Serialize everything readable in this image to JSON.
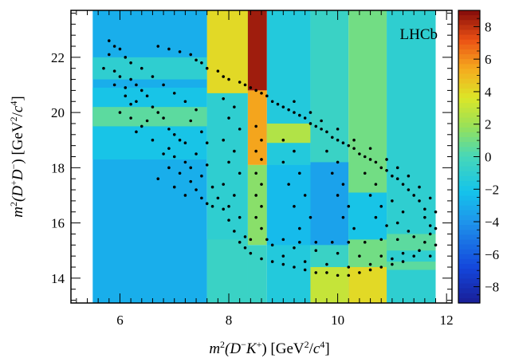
{
  "chart_data": {
    "type": "heatmap",
    "title": "",
    "annotation": "LHCb",
    "xlabel": {
      "text": "m",
      "sup1": "2",
      "mid": "(D",
      "sup2": "−",
      "mid2": "K",
      "sup3": "+",
      "mid3": ") [GeV",
      "sup4": "2",
      "mid4": "/c",
      "sup5": "4",
      "end": "]"
    },
    "ylabel": {
      "text": "m",
      "sup1": "2",
      "mid": "(D",
      "sup2": "+",
      "mid2": "D",
      "sup3": "−",
      "mid3": ") [GeV",
      "sup4": "2",
      "mid4": "/c",
      "sup5": "4",
      "end": "]"
    },
    "xlim": [
      5.1,
      12.1
    ],
    "ylim": [
      13.1,
      23.7
    ],
    "xticks": [
      6,
      8,
      10,
      12
    ],
    "yticks": [
      14,
      16,
      18,
      20,
      22
    ],
    "colorbar": {
      "range": [
        -9,
        9
      ],
      "ticks": [
        8,
        6,
        4,
        2,
        0,
        -2,
        -4,
        -6,
        -8
      ],
      "tick_labels": [
        "8",
        "6",
        "4",
        "2",
        "0",
        "−2",
        "−4",
        "−6",
        "−8"
      ]
    },
    "heatmap_cells": [
      {
        "x": [
          5.5,
          7.6
        ],
        "y": [
          13.1,
          23.7
        ],
        "v": -3.0
      },
      {
        "x": [
          5.5,
          7.6
        ],
        "y": [
          18.3,
          20.9
        ],
        "v": -2.0
      },
      {
        "x": [
          5.5,
          7.6
        ],
        "y": [
          19.5,
          20.2
        ],
        "v": 0.5
      },
      {
        "x": [
          5.5,
          7.6
        ],
        "y": [
          21.2,
          22.0
        ],
        "v": -1.0
      },
      {
        "x": [
          7.6,
          8.35
        ],
        "y": [
          13.1,
          23.7
        ],
        "v": -1.0
      },
      {
        "x": [
          7.6,
          8.35
        ],
        "y": [
          20.7,
          23.7
        ],
        "v": 4.0
      },
      {
        "x": [
          7.6,
          8.35
        ],
        "y": [
          13.1,
          15.4
        ],
        "v": -0.5
      },
      {
        "x": [
          8.35,
          8.7
        ],
        "y": [
          20.8,
          23.7
        ],
        "v": 8.5
      },
      {
        "x": [
          8.35,
          8.7
        ],
        "y": [
          18.1,
          20.8
        ],
        "v": 5.5
      },
      {
        "x": [
          8.35,
          8.7
        ],
        "y": [
          15.2,
          18.1
        ],
        "v": 1.5
      },
      {
        "x": [
          8.35,
          8.7
        ],
        "y": [
          13.1,
          15.2
        ],
        "v": -0.5
      },
      {
        "x": [
          8.7,
          9.5
        ],
        "y": [
          13.1,
          23.7
        ],
        "v": -1.5
      },
      {
        "x": [
          8.7,
          9.5
        ],
        "y": [
          18.9,
          19.6
        ],
        "v": 2.5
      },
      {
        "x": [
          8.7,
          9.5
        ],
        "y": [
          15.2,
          18.1
        ],
        "v": -2.5
      },
      {
        "x": [
          9.5,
          10.2
        ],
        "y": [
          13.1,
          23.7
        ],
        "v": -0.5
      },
      {
        "x": [
          9.5,
          10.2
        ],
        "y": [
          15.2,
          18.2
        ],
        "v": -3.5
      },
      {
        "x": [
          9.5,
          10.2
        ],
        "y": [
          13.1,
          14.4
        ],
        "v": 3.0
      },
      {
        "x": [
          10.2,
          10.9
        ],
        "y": [
          13.1,
          23.7
        ],
        "v": 1.0
      },
      {
        "x": [
          10.2,
          10.9
        ],
        "y": [
          15.4,
          17.1
        ],
        "v": -2.0
      },
      {
        "x": [
          10.2,
          10.9
        ],
        "y": [
          13.1,
          14.4
        ],
        "v": 4.0
      },
      {
        "x": [
          10.9,
          11.8
        ],
        "y": [
          13.1,
          23.7
        ],
        "v": -1.0
      },
      {
        "x": [
          10.9,
          11.8
        ],
        "y": [
          15.0,
          15.6
        ],
        "v": 0.5
      },
      {
        "x": [
          10.9,
          11.8
        ],
        "y": [
          14.3,
          14.6
        ],
        "v": 0.5
      }
    ],
    "scatter_description_source": "events",
    "scatter_points": [
      [
        5.8,
        22.6
      ],
      [
        5.9,
        22.4
      ],
      [
        6.0,
        22.3
      ],
      [
        5.8,
        22.1
      ],
      [
        6.1,
        22.0
      ],
      [
        6.2,
        21.8
      ],
      [
        5.7,
        21.6
      ],
      [
        5.9,
        21.5
      ],
      [
        6.0,
        21.3
      ],
      [
        6.2,
        21.2
      ],
      [
        6.3,
        21.0
      ],
      [
        6.1,
        20.9
      ],
      [
        6.4,
        20.8
      ],
      [
        6.5,
        20.6
      ],
      [
        6.3,
        20.4
      ],
      [
        6.2,
        20.3
      ],
      [
        6.6,
        20.2
      ],
      [
        6.7,
        20.0
      ],
      [
        6.8,
        19.8
      ],
      [
        6.5,
        19.7
      ],
      [
        6.4,
        19.5
      ],
      [
        6.9,
        19.4
      ],
      [
        7.0,
        19.2
      ],
      [
        7.1,
        19.0
      ],
      [
        7.2,
        18.9
      ],
      [
        6.9,
        18.7
      ],
      [
        7.0,
        18.4
      ],
      [
        7.2,
        18.2
      ],
      [
        7.3,
        18.0
      ],
      [
        7.1,
        17.8
      ],
      [
        7.3,
        17.5
      ],
      [
        7.4,
        17.2
      ],
      [
        7.2,
        17.0
      ],
      [
        7.5,
        16.9
      ],
      [
        7.6,
        16.7
      ],
      [
        7.7,
        16.6
      ],
      [
        6.7,
        22.4
      ],
      [
        6.9,
        22.3
      ],
      [
        7.1,
        22.2
      ],
      [
        7.3,
        22.1
      ],
      [
        7.4,
        21.9
      ],
      [
        7.5,
        21.8
      ],
      [
        7.6,
        21.6
      ],
      [
        7.8,
        21.5
      ],
      [
        7.9,
        21.3
      ],
      [
        8.0,
        21.2
      ],
      [
        8.2,
        21.1
      ],
      [
        8.3,
        21.0
      ],
      [
        8.4,
        20.9
      ],
      [
        8.5,
        20.8
      ],
      [
        8.6,
        20.7
      ],
      [
        8.7,
        20.6
      ],
      [
        8.8,
        20.4
      ],
      [
        8.9,
        20.3
      ],
      [
        9.0,
        20.2
      ],
      [
        9.1,
        20.1
      ],
      [
        9.2,
        20.0
      ],
      [
        9.3,
        19.9
      ],
      [
        9.4,
        19.8
      ],
      [
        9.5,
        19.6
      ],
      [
        9.6,
        19.5
      ],
      [
        9.7,
        19.4
      ],
      [
        9.8,
        19.3
      ],
      [
        9.9,
        19.1
      ],
      [
        10.0,
        19.0
      ],
      [
        10.1,
        18.9
      ],
      [
        10.2,
        18.8
      ],
      [
        10.3,
        18.7
      ],
      [
        10.4,
        18.5
      ],
      [
        10.5,
        18.4
      ],
      [
        10.6,
        18.3
      ],
      [
        10.7,
        18.2
      ],
      [
        10.8,
        18.0
      ],
      [
        10.9,
        17.9
      ],
      [
        11.0,
        17.7
      ],
      [
        11.1,
        17.6
      ],
      [
        11.2,
        17.4
      ],
      [
        11.3,
        17.2
      ],
      [
        11.4,
        17.0
      ],
      [
        11.5,
        16.8
      ],
      [
        11.6,
        16.5
      ],
      [
        11.6,
        16.2
      ],
      [
        11.7,
        15.9
      ],
      [
        11.7,
        15.6
      ],
      [
        11.6,
        15.3
      ],
      [
        11.5,
        15.0
      ],
      [
        11.4,
        14.8
      ],
      [
        11.2,
        14.6
      ],
      [
        11.0,
        14.5
      ],
      [
        10.8,
        14.4
      ],
      [
        10.6,
        14.3
      ],
      [
        10.4,
        14.2
      ],
      [
        10.2,
        14.1
      ],
      [
        10.0,
        14.1
      ],
      [
        9.8,
        14.2
      ],
      [
        9.6,
        14.2
      ],
      [
        9.4,
        14.3
      ],
      [
        9.2,
        14.4
      ],
      [
        9.0,
        14.5
      ],
      [
        8.8,
        14.6
      ],
      [
        8.6,
        14.7
      ],
      [
        8.4,
        14.9
      ],
      [
        8.3,
        15.1
      ],
      [
        8.2,
        15.3
      ],
      [
        8.4,
        15.4
      ],
      [
        8.7,
        15.4
      ],
      [
        9.0,
        15.4
      ],
      [
        9.3,
        15.3
      ],
      [
        9.6,
        15.3
      ],
      [
        9.9,
        15.3
      ],
      [
        10.2,
        15.3
      ],
      [
        10.5,
        15.3
      ],
      [
        10.8,
        15.4
      ],
      [
        11.1,
        15.4
      ],
      [
        11.4,
        15.5
      ],
      [
        8.5,
        19.5
      ],
      [
        8.6,
        19.0
      ],
      [
        8.5,
        18.6
      ],
      [
        8.6,
        18.3
      ],
      [
        8.5,
        17.8
      ],
      [
        8.6,
        17.4
      ],
      [
        8.5,
        17.0
      ],
      [
        8.6,
        16.6
      ],
      [
        8.5,
        16.2
      ],
      [
        8.6,
        15.8
      ],
      [
        7.9,
        20.5
      ],
      [
        8.1,
        20.2
      ],
      [
        8.0,
        19.8
      ],
      [
        8.2,
        19.4
      ],
      [
        7.9,
        19.0
      ],
      [
        8.1,
        18.6
      ],
      [
        8.0,
        18.2
      ],
      [
        8.2,
        17.8
      ],
      [
        7.9,
        17.4
      ],
      [
        8.1,
        17.0
      ],
      [
        8.0,
        16.6
      ],
      [
        8.2,
        16.2
      ],
      [
        9.0,
        19.0
      ],
      [
        9.2,
        18.6
      ],
      [
        9.0,
        18.2
      ],
      [
        9.3,
        17.8
      ],
      [
        9.1,
        17.4
      ],
      [
        9.4,
        17.0
      ],
      [
        9.2,
        16.6
      ],
      [
        9.5,
        16.2
      ],
      [
        9.3,
        15.8
      ],
      [
        9.8,
        18.6
      ],
      [
        10.0,
        18.2
      ],
      [
        9.9,
        17.8
      ],
      [
        10.1,
        17.4
      ],
      [
        10.0,
        17.0
      ],
      [
        10.2,
        16.6
      ],
      [
        10.1,
        16.2
      ],
      [
        10.3,
        15.8
      ],
      [
        10.5,
        17.8
      ],
      [
        10.7,
        17.4
      ],
      [
        10.6,
        17.0
      ],
      [
        10.8,
        16.6
      ],
      [
        10.7,
        16.2
      ],
      [
        10.9,
        15.9
      ],
      [
        11.0,
        16.8
      ],
      [
        11.2,
        16.4
      ],
      [
        11.1,
        16.0
      ],
      [
        11.3,
        15.7
      ],
      [
        5.9,
        21.0
      ],
      [
        6.1,
        20.6
      ],
      [
        6.0,
        20.0
      ],
      [
        6.2,
        19.8
      ],
      [
        6.3,
        19.3
      ],
      [
        6.6,
        19.0
      ],
      [
        6.8,
        18.5
      ],
      [
        6.9,
        18.0
      ],
      [
        6.7,
        17.6
      ],
      [
        7.0,
        17.3
      ],
      [
        6.4,
        21.6
      ],
      [
        6.6,
        21.3
      ],
      [
        6.8,
        21.0
      ],
      [
        7.0,
        20.7
      ],
      [
        7.2,
        20.4
      ],
      [
        7.4,
        20.1
      ],
      [
        7.3,
        19.7
      ],
      [
        7.5,
        19.3
      ],
      [
        7.6,
        18.9
      ],
      [
        7.4,
        18.5
      ],
      [
        7.6,
        18.1
      ],
      [
        7.5,
        17.7
      ],
      [
        7.7,
        17.3
      ],
      [
        7.8,
        16.9
      ],
      [
        7.9,
        16.5
      ],
      [
        8.0,
        16.1
      ],
      [
        8.1,
        15.7
      ],
      [
        8.3,
        15.5
      ],
      [
        8.8,
        15.2
      ],
      [
        9.2,
        15.1
      ],
      [
        9.6,
        15.0
      ],
      [
        10.0,
        14.9
      ],
      [
        10.4,
        14.8
      ],
      [
        10.8,
        14.8
      ],
      [
        11.2,
        14.9
      ],
      [
        9.0,
        14.8
      ],
      [
        9.4,
        14.6
      ],
      [
        9.8,
        14.5
      ],
      [
        10.2,
        14.4
      ],
      [
        10.6,
        14.5
      ],
      [
        11.0,
        14.7
      ],
      [
        9.2,
        20.4
      ],
      [
        9.5,
        20.0
      ],
      [
        9.7,
        19.7
      ],
      [
        10.0,
        19.4
      ],
      [
        10.3,
        19.0
      ],
      [
        10.6,
        18.7
      ],
      [
        10.9,
        18.3
      ],
      [
        11.1,
        18.0
      ],
      [
        11.3,
        17.7
      ],
      [
        11.5,
        17.3
      ],
      [
        11.7,
        16.9
      ],
      [
        11.8,
        16.4
      ],
      [
        11.8,
        15.8
      ],
      [
        11.8,
        15.2
      ],
      [
        11.7,
        14.8
      ]
    ]
  }
}
